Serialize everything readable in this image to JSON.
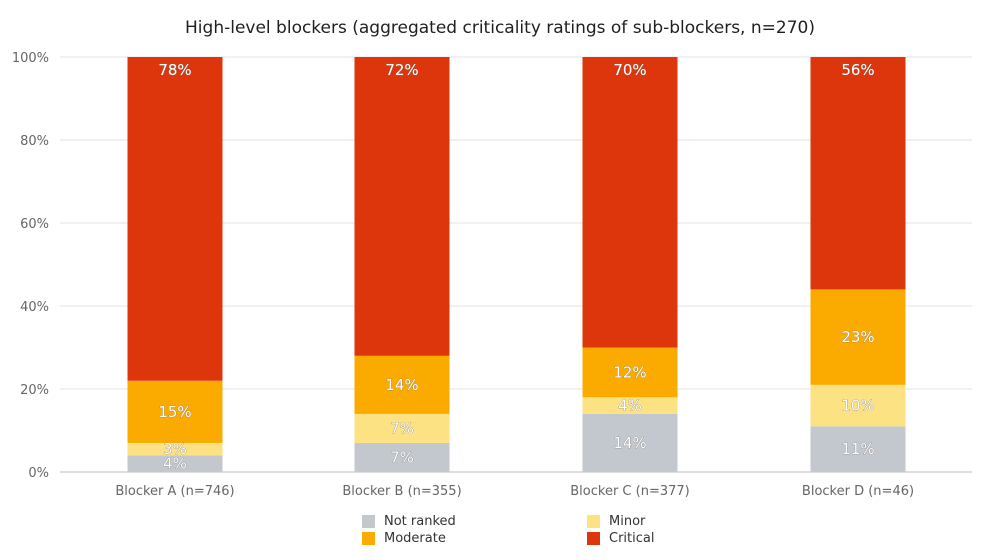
{
  "chart_data": {
    "type": "bar",
    "stacked": true,
    "title": "High-level blockers (aggregated criticality ratings of sub-blockers, n=270)",
    "categories": [
      "Blocker A (n=746)",
      "Blocker B (n=355)",
      "Blocker C (n=377)",
      "Blocker D (n=46)"
    ],
    "yticks": [
      "0%",
      "20%",
      "40%",
      "60%",
      "80%",
      "100%"
    ],
    "ylim": [
      0,
      100
    ],
    "grid": true,
    "legend_position": "bottom",
    "series": [
      {
        "name": "Not ranked",
        "color": "#c3c7ce",
        "values": [
          4,
          7,
          14,
          11
        ],
        "labels": [
          "4%",
          "7%",
          "14%",
          "11%"
        ]
      },
      {
        "name": "Minor",
        "color": "#fde283",
        "values": [
          3,
          7,
          4,
          10
        ],
        "labels": [
          "3%",
          "7%",
          "4%",
          "10%"
        ]
      },
      {
        "name": "Moderate",
        "color": "#fbab00",
        "values": [
          15,
          14,
          12,
          23
        ],
        "labels": [
          "15%",
          "14%",
          "12%",
          "23%"
        ]
      },
      {
        "name": "Critical",
        "color": "#dd360c",
        "values": [
          78,
          72,
          70,
          56
        ],
        "labels": [
          "78%",
          "72%",
          "70%",
          "56%"
        ]
      }
    ]
  }
}
